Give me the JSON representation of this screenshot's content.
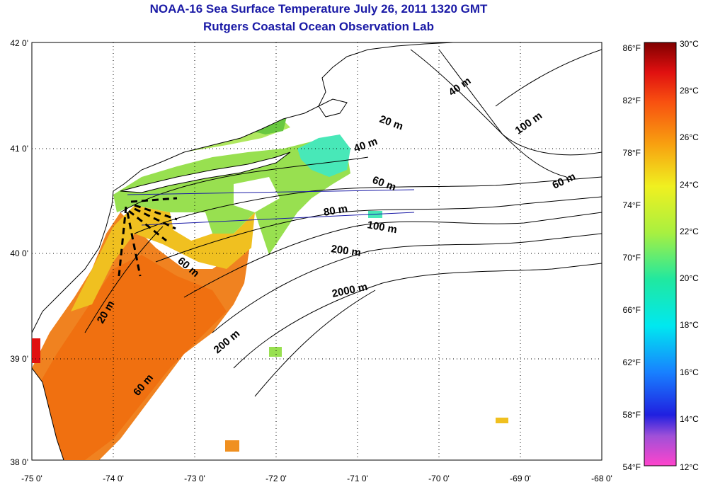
{
  "title": "NOAA-16 Sea Surface Temperature July 26, 2011 1320 GMT",
  "subtitle": "Rutgers Coastal Ocean Observation Lab",
  "lat_ticks": [
    "42 0'",
    "41 0'",
    "40 0'",
    "39 0'",
    "38 0'"
  ],
  "lon_ticks": [
    "-75 0'",
    "-74 0'",
    "-73 0'",
    "-72 0'",
    "-71 0'",
    "-70 0'",
    "-69 0'",
    "-68 0'"
  ],
  "isobath_labels": [
    "20 m",
    "40 m",
    "60 m",
    "80 m",
    "100 m",
    "200 m",
    "2000 m",
    "40 m",
    "100 m",
    "60 m",
    "60 m",
    "20 m",
    "200 m",
    "60 m"
  ],
  "colorbar": {
    "f_labels": [
      "86°F",
      "82°F",
      "78°F",
      "74°F",
      "70°F",
      "66°F",
      "62°F",
      "58°F",
      "54°F"
    ],
    "c_labels": [
      "30°C",
      "28°C",
      "26°C",
      "24°C",
      "22°C",
      "20°C",
      "18°C",
      "16°C",
      "14°C",
      "12°C"
    ]
  },
  "colors": {
    "title": "#1a1aa6",
    "land": "#ffffff",
    "cloud": "#ffffff",
    "warm": "#f07a14",
    "mid": "#a8e84a",
    "cool": "#38e8c8"
  }
}
